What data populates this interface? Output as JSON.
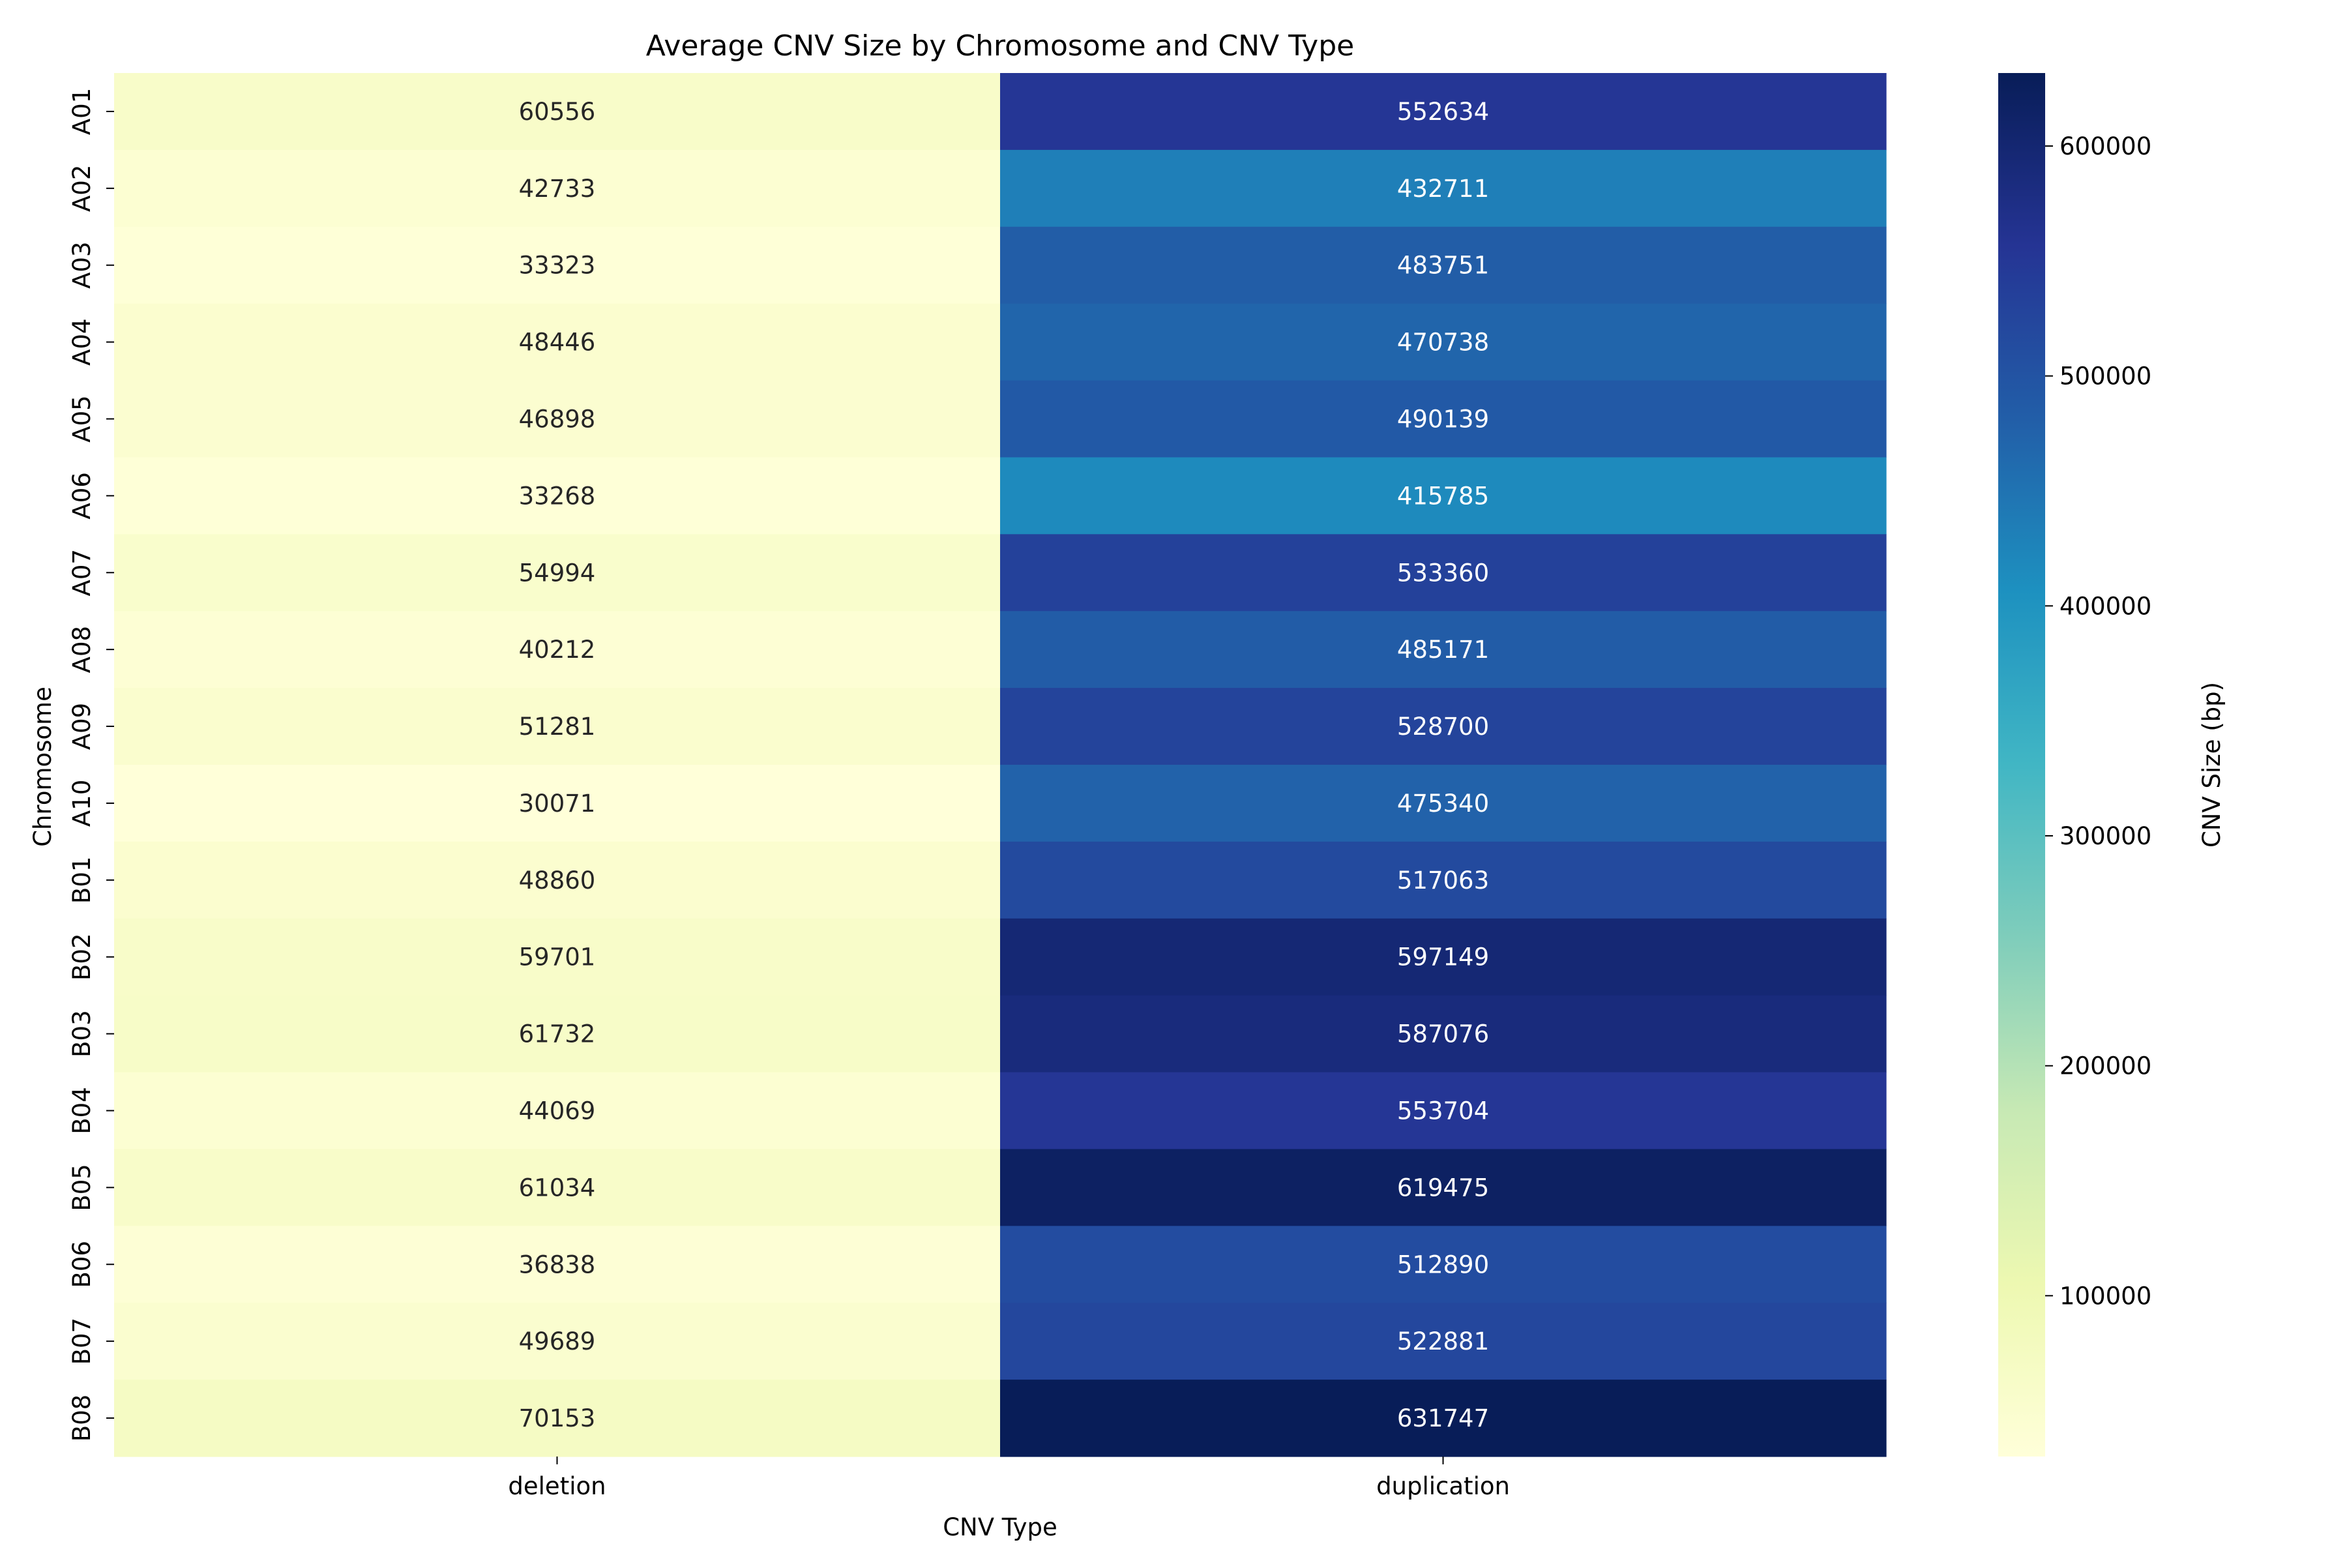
{
  "chart_data": {
    "type": "heatmap",
    "title": "Average CNV Size by Chromosome and CNV Type",
    "xlabel": "CNV Type",
    "ylabel": "Chromosome",
    "x_categories": [
      "deletion",
      "duplication"
    ],
    "y_categories": [
      "A01",
      "A02",
      "A03",
      "A04",
      "A05",
      "A06",
      "A07",
      "A08",
      "A09",
      "A10",
      "B01",
      "B02",
      "B03",
      "B04",
      "B05",
      "B06",
      "B07",
      "B08"
    ],
    "series": [
      {
        "name": "deletion",
        "values": [
          60556,
          42733,
          33323,
          48446,
          46898,
          33268,
          54994,
          40212,
          51281,
          30071,
          48860,
          59701,
          61732,
          44069,
          61034,
          36838,
          49689,
          70153
        ]
      },
      {
        "name": "duplication",
        "values": [
          552634,
          432711,
          483751,
          470738,
          490139,
          415785,
          533360,
          485171,
          528700,
          475340,
          517063,
          597149,
          587076,
          553704,
          619475,
          512890,
          522881,
          631747
        ]
      }
    ],
    "colorbar": {
      "label": "CNV Size (bp)",
      "range": [
        30071,
        631747
      ],
      "ticks": [
        100000,
        200000,
        300000,
        400000,
        500000,
        600000
      ],
      "tick_labels": [
        "100000",
        "200000",
        "300000",
        "400000",
        "500000",
        "600000"
      ],
      "colormap": "YlGnBu",
      "colors": [
        "#ffffd9",
        "#edf8b1",
        "#c7e9b4",
        "#7fcdbb",
        "#41b6c4",
        "#1d91c0",
        "#225ea8",
        "#253494",
        "#081d58"
      ]
    },
    "grid": false
  }
}
